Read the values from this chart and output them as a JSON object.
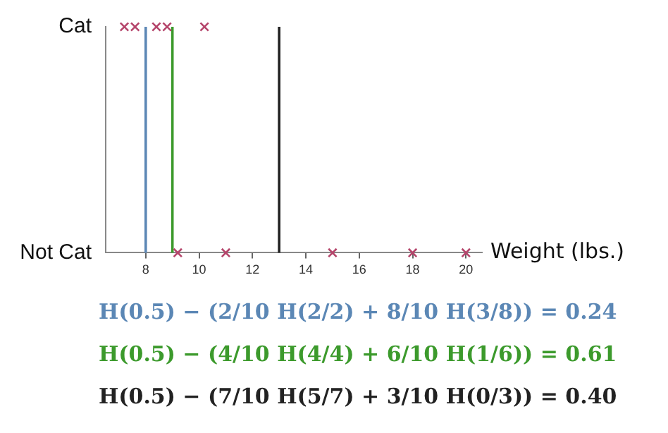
{
  "chart_data": {
    "type": "scatter",
    "orientation": "horizontal",
    "xlabel": "Weight (lbs.)",
    "categories": [
      "Cat",
      "Not Cat"
    ],
    "series": [
      {
        "color": "#b5456b",
        "values": [
          7.2,
          9.2
        ]
      },
      {
        "color": "#b5456b",
        "values": [
          7.6,
          11
        ]
      },
      {
        "color": "#b5456b",
        "values": [
          8.4,
          15
        ]
      },
      {
        "color": "#b5456b",
        "values": [
          8.8,
          18
        ]
      },
      {
        "color": "#b5456b",
        "values": [
          10.2,
          20
        ]
      }
    ],
    "marker": "cross",
    "grid": false,
    "xlim": [
      6.5,
      20.6
    ],
    "xticks": [
      8,
      10,
      12,
      14,
      16,
      18,
      20
    ],
    "ref_lines": [
      {
        "axis": "x",
        "value": 8,
        "color": "#5b87b5"
      },
      {
        "axis": "x",
        "value": 9,
        "color": "#3c9a2c"
      },
      {
        "axis": "x",
        "value": 13,
        "color": "#222222"
      }
    ],
    "annotations": [
      "H(0.5) − (2/10 H(2/2) + 8/10 H(3/8)) = 0.24",
      "H(0.5) − (4/10 H(4/4) + 6/10 H(1/6)) = 0.61",
      "H(0.5) − (7/10 H(5/7) + 3/10 H(0/3)) = 0.40"
    ]
  }
}
